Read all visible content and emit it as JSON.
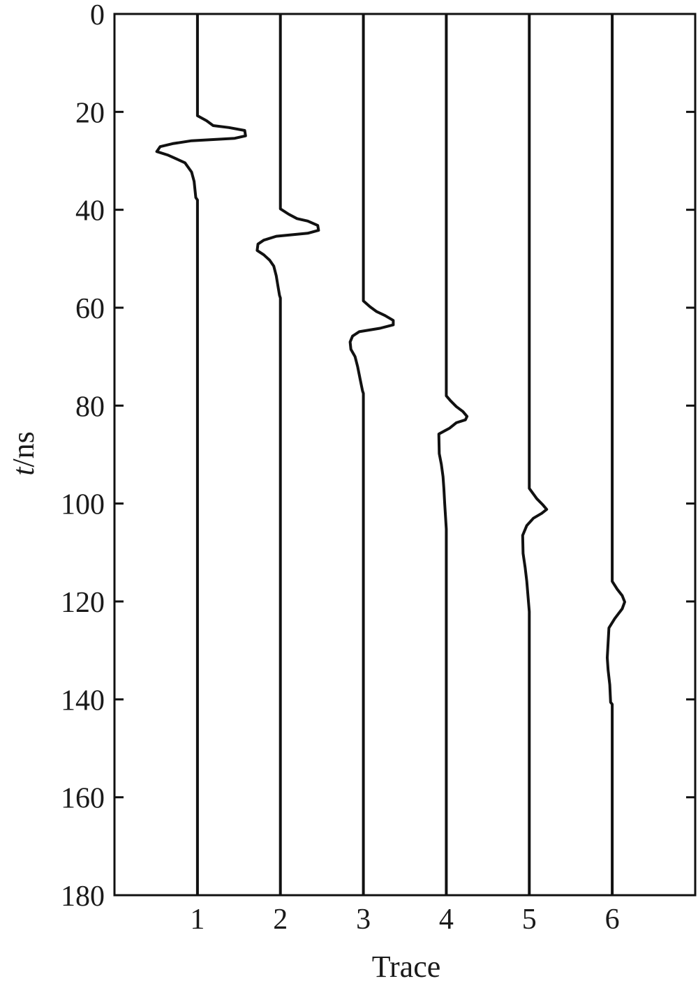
{
  "chart_data": {
    "type": "line",
    "title": "",
    "xlabel": "Trace",
    "ylabel_italic": "t",
    "ylabel_rest": "/ns",
    "xlim": [
      0,
      7
    ],
    "ylim": [
      0,
      180
    ],
    "y_inverted": true,
    "grid": false,
    "line_color": "#111111",
    "xticks": [
      1,
      2,
      3,
      4,
      5,
      6
    ],
    "yticks": [
      0,
      20,
      40,
      60,
      80,
      100,
      120,
      140,
      160,
      180
    ],
    "series": [
      {
        "trace": 1,
        "points": [
          [
            0,
            0
          ],
          [
            20.8,
            0
          ],
          [
            21.8,
            0.11
          ],
          [
            22.8,
            0.19
          ],
          [
            23.2,
            0.38
          ],
          [
            23.8,
            0.57
          ],
          [
            24.9,
            0.58
          ],
          [
            25.4,
            0.45
          ],
          [
            25.9,
            -0.07
          ],
          [
            26.5,
            -0.3
          ],
          [
            27.1,
            -0.45
          ],
          [
            28.1,
            -0.49
          ],
          [
            28.8,
            -0.36
          ],
          [
            29.7,
            -0.24
          ],
          [
            30.4,
            -0.15
          ],
          [
            32.3,
            -0.07
          ],
          [
            34.2,
            -0.04
          ],
          [
            37.5,
            -0.02
          ],
          [
            38,
            0
          ],
          [
            180,
            0
          ]
        ]
      },
      {
        "trace": 2,
        "points": [
          [
            0,
            0
          ],
          [
            39.8,
            0
          ],
          [
            40.9,
            0.1
          ],
          [
            41.8,
            0.2
          ],
          [
            42.3,
            0.33
          ],
          [
            43.2,
            0.45
          ],
          [
            44.2,
            0.46
          ],
          [
            44.8,
            0.33
          ],
          [
            45.4,
            -0.05
          ],
          [
            46.2,
            -0.2
          ],
          [
            47.0,
            -0.27
          ],
          [
            48.3,
            -0.28
          ],
          [
            49.2,
            -0.2
          ],
          [
            50.3,
            -0.13
          ],
          [
            51.5,
            -0.08
          ],
          [
            53.5,
            -0.05
          ],
          [
            55.5,
            -0.03
          ],
          [
            57.5,
            -0.01
          ],
          [
            58,
            0
          ],
          [
            180,
            0
          ]
        ]
      },
      {
        "trace": 3,
        "points": [
          [
            0,
            0
          ],
          [
            58.6,
            0
          ],
          [
            59.8,
            0.08
          ],
          [
            60.8,
            0.16
          ],
          [
            61.6,
            0.26
          ],
          [
            62.6,
            0.36
          ],
          [
            63.5,
            0.36
          ],
          [
            64.2,
            0.2
          ],
          [
            64.9,
            -0.05
          ],
          [
            65.8,
            -0.13
          ],
          [
            67,
            -0.16
          ],
          [
            68.5,
            -0.15
          ],
          [
            70,
            -0.1
          ],
          [
            72,
            -0.07
          ],
          [
            74.5,
            -0.04
          ],
          [
            77,
            -0.01
          ],
          [
            77.5,
            0
          ],
          [
            180,
            0
          ]
        ]
      },
      {
        "trace": 4,
        "points": [
          [
            0,
            0
          ],
          [
            78,
            0
          ],
          [
            79,
            0.05
          ],
          [
            80.2,
            0.12
          ],
          [
            81.2,
            0.2
          ],
          [
            82.2,
            0.25
          ],
          [
            82.9,
            0.23
          ],
          [
            83.5,
            0.12
          ],
          [
            84.6,
            0.04
          ],
          [
            85.8,
            -0.09
          ],
          [
            89.8,
            -0.085
          ],
          [
            92,
            -0.06
          ],
          [
            94.5,
            -0.04
          ],
          [
            96.9,
            -0.03
          ],
          [
            100,
            -0.02
          ],
          [
            105.2,
            0
          ],
          [
            180,
            0
          ]
        ]
      },
      {
        "trace": 5,
        "points": [
          [
            0,
            0
          ],
          [
            96.9,
            0
          ],
          [
            99,
            0.09
          ],
          [
            100.2,
            0.16
          ],
          [
            101.2,
            0.21
          ],
          [
            102,
            0.15
          ],
          [
            103,
            0.05
          ],
          [
            104.5,
            -0.03
          ],
          [
            106.5,
            -0.08
          ],
          [
            110.2,
            -0.075
          ],
          [
            113,
            -0.05
          ],
          [
            115.9,
            -0.03
          ],
          [
            119,
            -0.015
          ],
          [
            122.1,
            0
          ],
          [
            180,
            0
          ]
        ]
      },
      {
        "trace": 6,
        "points": [
          [
            0,
            0
          ],
          [
            115.9,
            0
          ],
          [
            117.5,
            0.06
          ],
          [
            118.8,
            0.12
          ],
          [
            120.1,
            0.15
          ],
          [
            121.5,
            0.12
          ],
          [
            123.5,
            0.03
          ],
          [
            125.4,
            -0.04
          ],
          [
            131.5,
            -0.06
          ],
          [
            134,
            -0.05
          ],
          [
            137,
            -0.03
          ],
          [
            140.6,
            -0.02
          ],
          [
            141,
            0
          ],
          [
            180,
            0
          ]
        ]
      }
    ]
  }
}
